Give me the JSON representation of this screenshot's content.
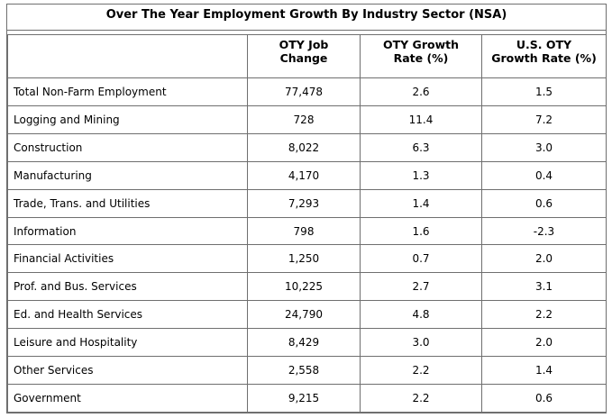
{
  "table": {
    "title": "Over The Year Employment Growth By Industry Sector (NSA)",
    "headers": [
      "",
      "OTY Job\nChange",
      "OTY Growth\nRate (%)",
      "U.S. OTY\nGrowth Rate (%)"
    ],
    "rows": [
      [
        "Total Non-Farm Employment",
        "77,478",
        "2.6",
        "1.5"
      ],
      [
        "Logging and Mining",
        "728",
        "11.4",
        "7.2"
      ],
      [
        "Construction",
        "8,022",
        "6.3",
        "3.0"
      ],
      [
        "Manufacturing",
        "4,170",
        "1.3",
        "0.4"
      ],
      [
        "Trade, Trans. and Utilities",
        "7,293",
        "1.4",
        "0.6"
      ],
      [
        "Information",
        "798",
        "1.6",
        "-2.3"
      ],
      [
        "Financial Activities",
        "1,250",
        "0.7",
        "2.0"
      ],
      [
        "Prof. and Bus. Services",
        "10,225",
        "2.7",
        "3.1"
      ],
      [
        "Ed. and Health Services",
        "24,790",
        "4.8",
        "2.2"
      ],
      [
        "Leisure and Hospitality",
        "8,429",
        "3.0",
        "2.0"
      ],
      [
        "Other Services",
        "2,558",
        "2.2",
        "1.4"
      ],
      [
        "Government",
        "9,215",
        "2.2",
        "0.6"
      ]
    ]
  }
}
